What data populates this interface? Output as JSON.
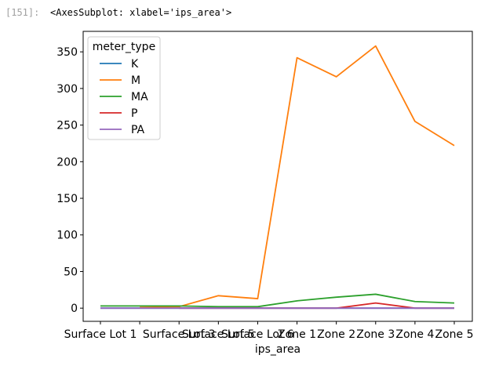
{
  "cell": {
    "prompt": "[151]:",
    "output_text": "<AxesSubplot: xlabel='ips_area'>"
  },
  "chart_data": {
    "type": "line",
    "xlabel": "ips_area",
    "ylabel": "",
    "categories": [
      "Surface Lot 1",
      "Surface Lot 2",
      "Surface Lot 3",
      "Surface Lot 5",
      "Surface Lot 6",
      "Zone 1",
      "Zone 2",
      "Zone 3",
      "Zone 4",
      "Zone 5"
    ],
    "x_tick_labels": [
      "Surface Lot 1",
      "Surface Lot 3",
      "Surface Lot 5",
      "Surface Lot 6",
      "Zone 1",
      "Zone 2",
      "Zone 3",
      "Zone 4",
      "Zone 5"
    ],
    "ylim": [
      -18,
      378
    ],
    "y_ticks": [
      0,
      50,
      100,
      150,
      200,
      250,
      300,
      350
    ],
    "grid": false,
    "legend": {
      "title": "meter_type",
      "placement": "top-left"
    },
    "series": [
      {
        "name": "K",
        "color": "#1f77b4",
        "values": [
          0,
          0,
          0,
          0,
          0,
          0,
          0,
          0,
          0,
          0
        ]
      },
      {
        "name": "M",
        "color": "#ff7f0e",
        "values": [
          null,
          1,
          2,
          17,
          13,
          342,
          316,
          358,
          255,
          222
        ]
      },
      {
        "name": "MA",
        "color": "#2ca02c",
        "values": [
          3,
          3,
          3,
          2,
          2,
          10,
          15,
          19,
          9,
          7
        ]
      },
      {
        "name": "P",
        "color": "#d62728",
        "values": [
          null,
          null,
          0,
          0,
          0,
          0,
          0,
          7,
          0,
          0
        ]
      },
      {
        "name": "PA",
        "color": "#9467bd",
        "values": [
          0,
          0,
          0,
          0,
          0,
          0,
          0,
          0,
          0,
          0
        ]
      }
    ]
  }
}
